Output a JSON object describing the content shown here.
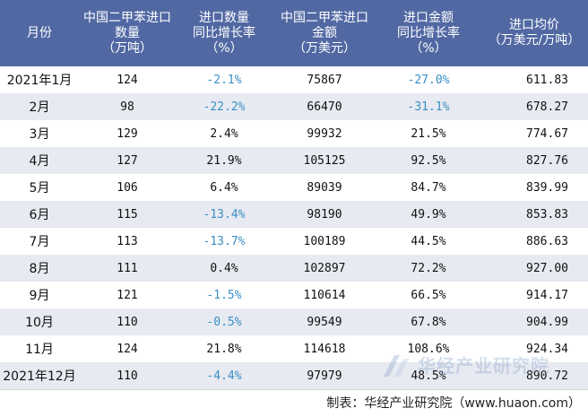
{
  "headers": [
    [
      "月份"
    ],
    [
      "中国二甲苯进口",
      "数量",
      "（万吨）"
    ],
    [
      "进口数量",
      "同比增长率",
      "（%）"
    ],
    [
      "中国二甲苯进口",
      "金额",
      "（万美元）"
    ],
    [
      "进口金额",
      "同比增长率",
      "（%）"
    ],
    [
      "进口均价",
      "（万美元/万吨）"
    ]
  ],
  "rows": [
    {
      "month": "2021年1月",
      "qty": "124",
      "qty_yoy": "-2.1%",
      "amount": "75867",
      "amount_yoy": "-27.0%",
      "price": "611.83"
    },
    {
      "month": "2月",
      "qty": "98",
      "qty_yoy": "-22.2%",
      "amount": "66470",
      "amount_yoy": "-31.1%",
      "price": "678.27"
    },
    {
      "month": "3月",
      "qty": "129",
      "qty_yoy": "2.4%",
      "amount": "99932",
      "amount_yoy": "21.5%",
      "price": "774.67"
    },
    {
      "month": "4月",
      "qty": "127",
      "qty_yoy": "21.9%",
      "amount": "105125",
      "amount_yoy": "92.5%",
      "price": "827.76"
    },
    {
      "month": "5月",
      "qty": "106",
      "qty_yoy": "6.4%",
      "amount": "89039",
      "amount_yoy": "84.7%",
      "price": "839.99"
    },
    {
      "month": "6月",
      "qty": "115",
      "qty_yoy": "-13.4%",
      "amount": "98190",
      "amount_yoy": "49.9%",
      "price": "853.83"
    },
    {
      "month": "7月",
      "qty": "113",
      "qty_yoy": "-13.7%",
      "amount": "100189",
      "amount_yoy": "44.5%",
      "price": "886.63"
    },
    {
      "month": "8月",
      "qty": "111",
      "qty_yoy": "0.4%",
      "amount": "102897",
      "amount_yoy": "72.2%",
      "price": "927.00"
    },
    {
      "month": "9月",
      "qty": "121",
      "qty_yoy": "-1.5%",
      "amount": "110614",
      "amount_yoy": "66.5%",
      "price": "914.17"
    },
    {
      "month": "10月",
      "qty": "110",
      "qty_yoy": "-0.5%",
      "amount": "99549",
      "amount_yoy": "67.8%",
      "price": "904.99"
    },
    {
      "month": "11月",
      "qty": "124",
      "qty_yoy": "21.8%",
      "amount": "114618",
      "amount_yoy": "108.6%",
      "price": "924.34"
    },
    {
      "month": "2021年12月",
      "qty": "110",
      "qty_yoy": "-4.4%",
      "amount": "97979",
      "amount_yoy": "48.5%",
      "price": "890.72"
    }
  ],
  "footer": "制表：华经产业研究院（www.huaon.com）",
  "watermark": "华经产业研究院",
  "colors": {
    "header_bg": "#5168a3",
    "stripe": "#e7eaf1",
    "negative": "#3a8fc4"
  }
}
